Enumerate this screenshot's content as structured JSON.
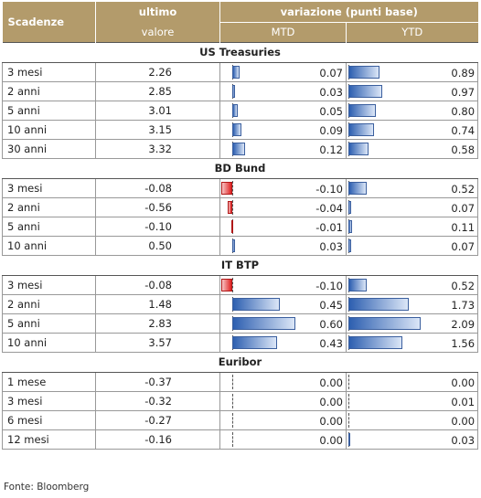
{
  "header": {
    "col_name": "Scadenze",
    "col_last_top": "ultimo",
    "col_last_bottom": "valore",
    "variation": "variazione (punti base)",
    "mtd": "MTD",
    "ytd": "YTD"
  },
  "groups": [
    {
      "title": "US Treasuries",
      "rows": [
        {
          "name": "3 mesi",
          "value": "2.26",
          "mtd": 0.07,
          "ytd": 0.89
        },
        {
          "name": "2 anni",
          "value": "2.85",
          "mtd": 0.03,
          "ytd": 0.97
        },
        {
          "name": "5 anni",
          "value": "3.01",
          "mtd": 0.05,
          "ytd": 0.8
        },
        {
          "name": "10 anni",
          "value": "3.15",
          "mtd": 0.09,
          "ytd": 0.74
        },
        {
          "name": "30 anni",
          "value": "3.32",
          "mtd": 0.12,
          "ytd": 0.58
        }
      ]
    },
    {
      "title": "BD Bund",
      "rows": [
        {
          "name": "3 mesi",
          "value": "-0.08",
          "mtd": -0.1,
          "ytd": 0.52
        },
        {
          "name": "2 anni",
          "value": "-0.56",
          "mtd": -0.04,
          "ytd": 0.07
        },
        {
          "name": "5 anni",
          "value": "-0.10",
          "mtd": -0.01,
          "ytd": 0.11
        },
        {
          "name": "10 anni",
          "value": "0.50",
          "mtd": 0.03,
          "ytd": 0.07
        }
      ]
    },
    {
      "title": "IT BTP",
      "rows": [
        {
          "name": "3 mesi",
          "value": "-0.08",
          "mtd": -0.1,
          "ytd": 0.52
        },
        {
          "name": "2 anni",
          "value": "1.48",
          "mtd": 0.45,
          "ytd": 1.73
        },
        {
          "name": "5 anni",
          "value": "2.83",
          "mtd": 0.6,
          "ytd": 2.09
        },
        {
          "name": "10 anni",
          "value": "3.57",
          "mtd": 0.43,
          "ytd": 1.56
        }
      ]
    },
    {
      "title": "Euribor",
      "rows": [
        {
          "name": "1 mese",
          "value": "-0.37",
          "mtd": 0.0,
          "ytd": 0.0
        },
        {
          "name": "3 mesi",
          "value": "-0.32",
          "mtd": 0.0,
          "ytd": 0.01
        },
        {
          "name": "6 mesi",
          "value": "-0.27",
          "mtd": 0.0,
          "ytd": 0.0
        },
        {
          "name": "12 mesi",
          "value": "-0.16",
          "mtd": 0.0,
          "ytd": 0.03
        }
      ]
    }
  ],
  "source": "Fonte: Bloomberg",
  "colors": {
    "header": "#b39b6b",
    "positive": "#2d5fb0",
    "negative": "#e02020"
  }
}
